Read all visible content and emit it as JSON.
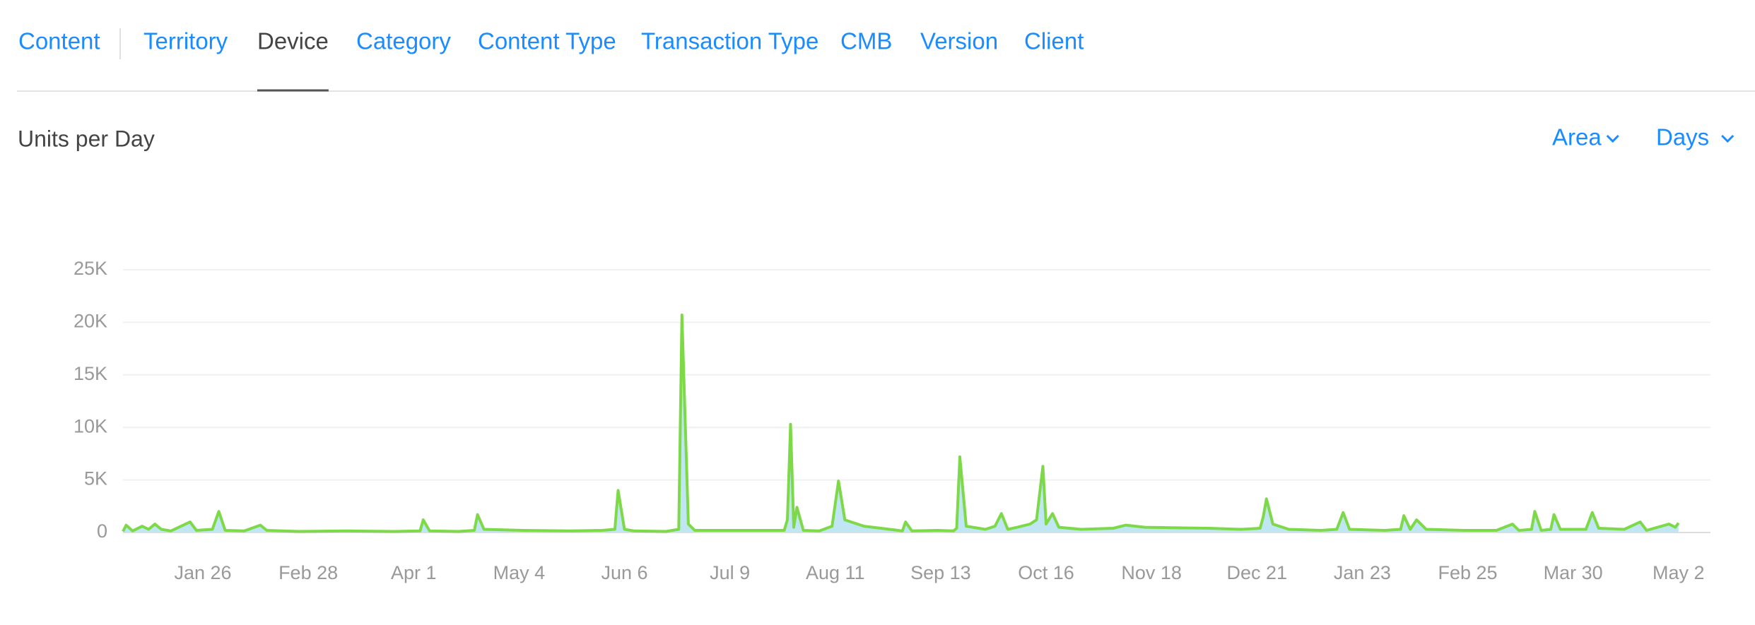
{
  "tabs": [
    "Content",
    "Territory",
    "Device",
    "Category",
    "Content Type",
    "Transaction Type",
    "CMB",
    "Version",
    "Client"
  ],
  "active_tab": 2,
  "controls": [
    "Area",
    "Days"
  ],
  "chart_data": {
    "type": "area",
    "title": "Units per Day",
    "x": [
      0,
      1,
      3,
      6,
      8,
      10,
      12,
      15,
      21,
      23,
      28,
      30,
      32,
      38,
      43,
      45,
      55,
      70,
      85,
      93,
      94,
      96,
      105,
      110,
      111,
      113,
      125,
      140,
      150,
      154,
      155,
      157,
      160,
      170,
      174,
      175,
      177,
      179,
      190,
      200,
      207,
      208,
      209,
      210,
      211,
      213,
      218,
      222,
      224,
      226,
      228,
      232,
      240,
      244,
      245,
      247,
      255,
      260,
      261,
      262,
      264,
      270,
      273,
      275,
      277,
      280,
      284,
      286,
      288,
      289,
      291,
      293,
      300,
      310,
      314,
      320,
      340,
      350,
      356,
      357,
      358,
      360,
      365,
      375,
      380,
      382,
      384,
      395,
      400,
      401,
      403,
      405,
      408,
      420,
      430,
      435,
      437,
      441,
      442,
      444,
      447,
      448,
      450,
      458,
      460,
      462,
      470,
      475,
      477,
      484,
      486,
      487
    ],
    "values": [
      100,
      700,
      150,
      600,
      300,
      800,
      300,
      150,
      1000,
      200,
      300,
      2000,
      200,
      150,
      700,
      200,
      100,
      150,
      100,
      150,
      1200,
      150,
      100,
      200,
      1700,
      300,
      200,
      150,
      200,
      300,
      4000,
      300,
      150,
      100,
      300,
      20700,
      800,
      200,
      200,
      200,
      200,
      1200,
      10300,
      500,
      2400,
      200,
      150,
      600,
      4900,
      1200,
      1000,
      600,
      300,
      150,
      1000,
      150,
      200,
      150,
      400,
      7200,
      600,
      300,
      600,
      1800,
      300,
      500,
      800,
      1200,
      6300,
      800,
      1800,
      500,
      300,
      400,
      700,
      500,
      400,
      300,
      400,
      1500,
      3200,
      800,
      300,
      200,
      300,
      1900,
      300,
      200,
      300,
      1600,
      300,
      1200,
      300,
      200,
      200,
      800,
      200,
      300,
      2000,
      200,
      300,
      1700,
      300,
      300,
      1900,
      400,
      300,
      1000,
      200,
      800,
      500,
      900
    ],
    "color": "#7ed948",
    "fill_color": "#bfe6f2",
    "xlim": [
      0,
      497
    ],
    "xticks": [
      {
        "value": 25,
        "label": "Jan 26"
      },
      {
        "value": 58,
        "label": "Feb 28"
      },
      {
        "value": 91,
        "label": "Apr 1"
      },
      {
        "value": 124,
        "label": "May 4"
      },
      {
        "value": 157,
        "label": "Jun 6"
      },
      {
        "value": 190,
        "label": "Jul 9"
      },
      {
        "value": 223,
        "label": "Aug 11"
      },
      {
        "value": 256,
        "label": "Sep 13"
      },
      {
        "value": 289,
        "label": "Oct 16"
      },
      {
        "value": 322,
        "label": "Nov 18"
      },
      {
        "value": 355,
        "label": "Dec 21"
      },
      {
        "value": 388,
        "label": "Jan 23"
      },
      {
        "value": 421,
        "label": "Feb 25"
      },
      {
        "value": 454,
        "label": "Mar 30"
      },
      {
        "value": 487,
        "label": "May 2"
      }
    ],
    "ylim": [
      0,
      25000
    ],
    "yticks": [
      0,
      {
        "value": 5000,
        "label": "5K"
      },
      {
        "value": 10000,
        "label": "10K"
      },
      {
        "value": 15000,
        "label": "15K"
      },
      {
        "value": 20000,
        "label": "20K"
      },
      {
        "value": 25000,
        "label": "25K"
      }
    ],
    "grid": true
  }
}
